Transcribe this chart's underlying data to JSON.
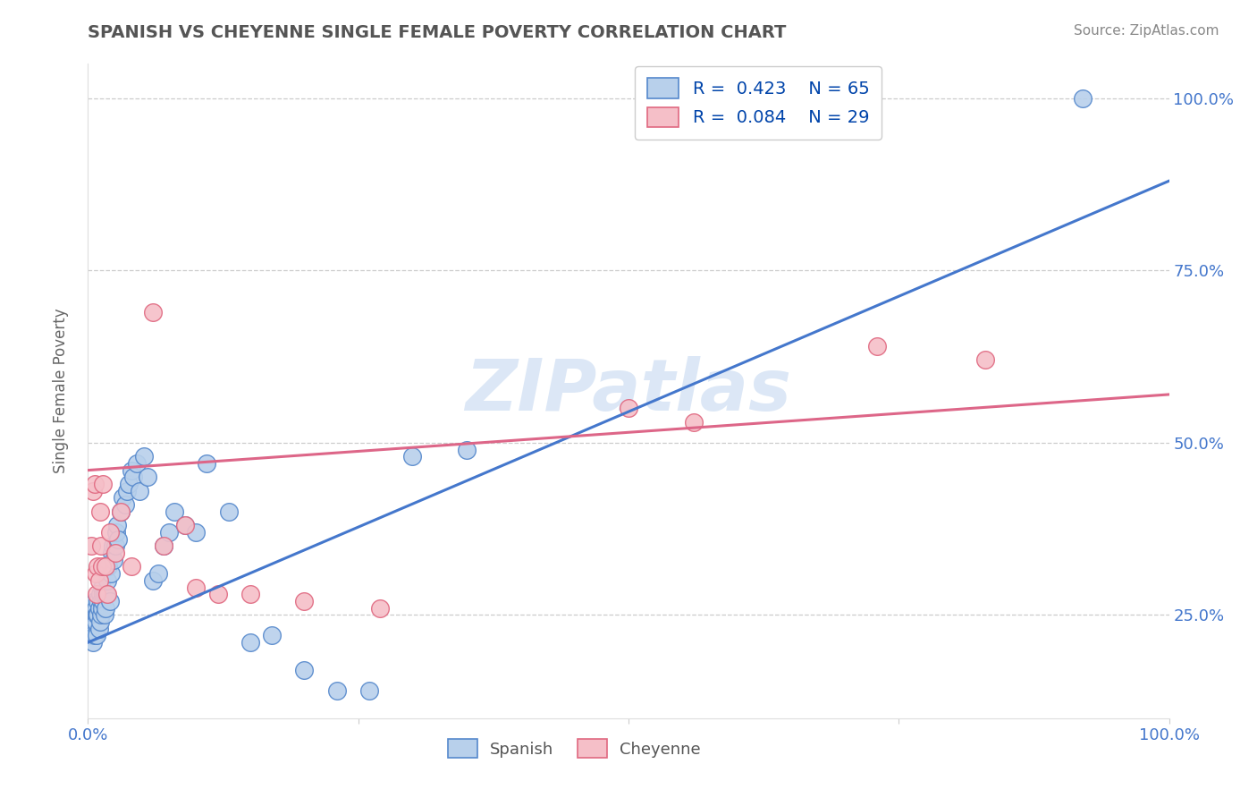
{
  "title": "SPANISH VS CHEYENNE SINGLE FEMALE POVERTY CORRELATION CHART",
  "source": "Source: ZipAtlas.com",
  "ylabel": "Single Female Poverty",
  "xlim": [
    0,
    1.0
  ],
  "ylim": [
    0.1,
    1.05
  ],
  "x_ticks": [
    0,
    1.0
  ],
  "x_tick_labels": [
    "0.0%",
    "100.0%"
  ],
  "y_ticks": [
    0.25,
    0.5,
    0.75,
    1.0
  ],
  "y_tick_labels": [
    "25.0%",
    "50.0%",
    "75.0%",
    "100.0%"
  ],
  "spanish_R": 0.423,
  "spanish_N": 65,
  "cheyenne_R": 0.084,
  "cheyenne_N": 29,
  "spanish_color": "#b8d0eb",
  "spanish_edge": "#5588cc",
  "cheyenne_color": "#f5bfc8",
  "cheyenne_edge": "#e06880",
  "spanish_line_color": "#4477cc",
  "cheyenne_line_color": "#dd6688",
  "watermark": "ZIPatlas",
  "watermark_color": "#c5d8f0",
  "background_color": "#ffffff",
  "grid_color": "#cccccc",
  "tick_color": "#4477cc",
  "title_color": "#555555",
  "source_color": "#888888",
  "legend_color": "#0044aa",
  "spanish_x": [
    0.002,
    0.003,
    0.004,
    0.005,
    0.006,
    0.006,
    0.007,
    0.007,
    0.008,
    0.008,
    0.009,
    0.009,
    0.01,
    0.01,
    0.011,
    0.011,
    0.012,
    0.012,
    0.013,
    0.013,
    0.014,
    0.014,
    0.015,
    0.015,
    0.016,
    0.017,
    0.018,
    0.019,
    0.02,
    0.021,
    0.022,
    0.023,
    0.024,
    0.025,
    0.026,
    0.027,
    0.028,
    0.03,
    0.032,
    0.034,
    0.036,
    0.038,
    0.04,
    0.042,
    0.045,
    0.048,
    0.052,
    0.055,
    0.06,
    0.065,
    0.07,
    0.075,
    0.08,
    0.09,
    0.1,
    0.11,
    0.13,
    0.15,
    0.17,
    0.2,
    0.23,
    0.26,
    0.3,
    0.35,
    0.92
  ],
  "spanish_y": [
    0.26,
    0.23,
    0.22,
    0.21,
    0.22,
    0.27,
    0.24,
    0.26,
    0.22,
    0.25,
    0.25,
    0.27,
    0.23,
    0.26,
    0.28,
    0.24,
    0.27,
    0.25,
    0.26,
    0.29,
    0.27,
    0.28,
    0.25,
    0.28,
    0.26,
    0.28,
    0.3,
    0.32,
    0.27,
    0.31,
    0.34,
    0.35,
    0.33,
    0.35,
    0.37,
    0.38,
    0.36,
    0.4,
    0.42,
    0.41,
    0.43,
    0.44,
    0.46,
    0.45,
    0.47,
    0.43,
    0.48,
    0.45,
    0.3,
    0.31,
    0.35,
    0.37,
    0.4,
    0.38,
    0.37,
    0.47,
    0.4,
    0.21,
    0.22,
    0.17,
    0.14,
    0.14,
    0.48,
    0.49,
    1.0
  ],
  "cheyenne_x": [
    0.003,
    0.005,
    0.006,
    0.007,
    0.008,
    0.009,
    0.01,
    0.011,
    0.012,
    0.013,
    0.014,
    0.016,
    0.018,
    0.02,
    0.025,
    0.03,
    0.04,
    0.06,
    0.07,
    0.09,
    0.1,
    0.12,
    0.15,
    0.2,
    0.27,
    0.5,
    0.56,
    0.73,
    0.83
  ],
  "cheyenne_y": [
    0.35,
    0.43,
    0.44,
    0.31,
    0.28,
    0.32,
    0.3,
    0.4,
    0.35,
    0.32,
    0.44,
    0.32,
    0.28,
    0.37,
    0.34,
    0.4,
    0.32,
    0.69,
    0.35,
    0.38,
    0.29,
    0.28,
    0.28,
    0.27,
    0.26,
    0.55,
    0.53,
    0.64,
    0.62
  ],
  "blue_line_x": [
    0.0,
    1.0
  ],
  "blue_line_y": [
    0.21,
    0.88
  ],
  "pink_line_x": [
    0.0,
    1.0
  ],
  "pink_line_y": [
    0.46,
    0.57
  ]
}
